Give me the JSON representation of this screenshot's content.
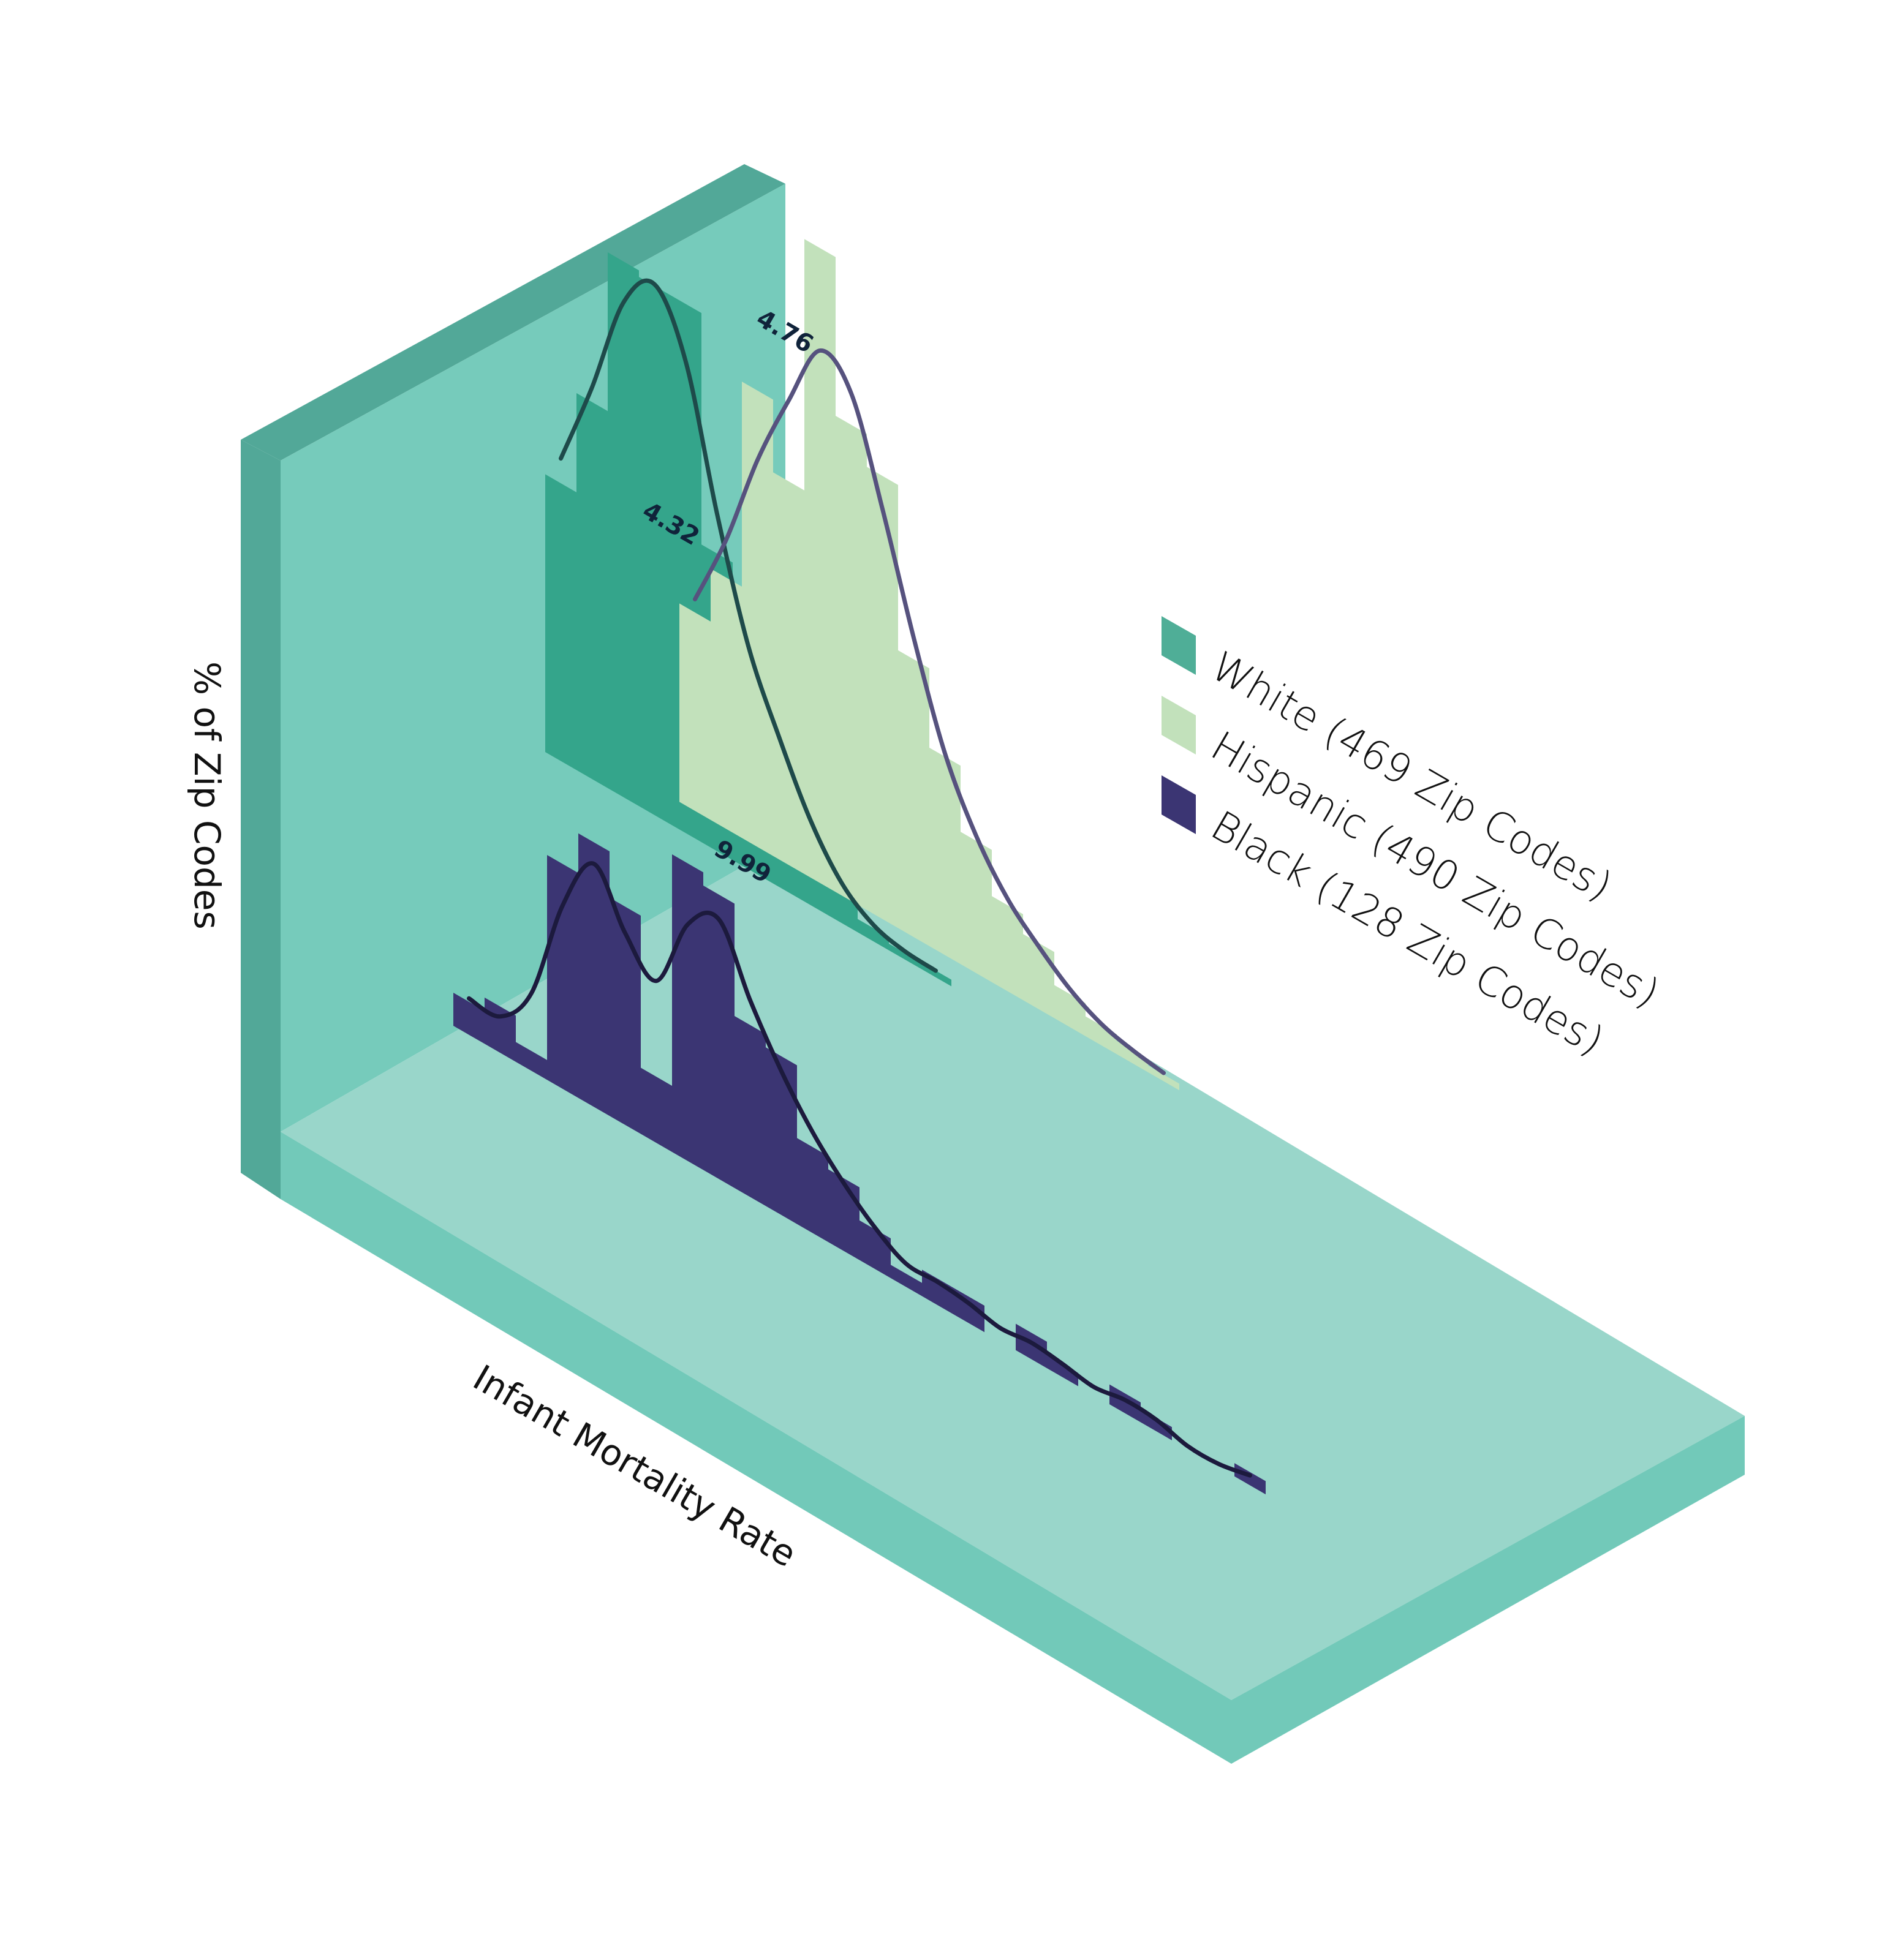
{
  "chart_data": {
    "type": "histogram-3d",
    "title": "",
    "xlabel": "Infant Mortality Rate",
    "ylabel": "% of Zip Codes",
    "grid": false,
    "legend_position": "right",
    "colors": {
      "White": "#34a58b",
      "Hispanic": "#c2e1bb",
      "Black": "#3b3573",
      "wall_face": "#76cbbb",
      "wall_side": "#52a898",
      "floor_top": "#99d6ca",
      "floor_edge": "#72c9b9",
      "curve_white": "#1e4a4a",
      "curve_hispanic": "#56527e",
      "curve_black": "#1c1a3d"
    },
    "series": [
      {
        "name": "White (469 Zip Codes)",
        "key": "White",
        "peak_label": "4.32",
        "bins": [
          {
            "x": 0,
            "y": 0.42
          },
          {
            "x": 1,
            "y": 0.57
          },
          {
            "x": 2,
            "y": 0.81
          },
          {
            "x": 3,
            "y": 0.8
          },
          {
            "x": 4,
            "y": 0.8
          },
          {
            "x": 5,
            "y": 0.45
          },
          {
            "x": 6,
            "y": 0.34
          },
          {
            "x": 7,
            "y": 0.22
          },
          {
            "x": 8,
            "y": 0.12
          },
          {
            "x": 9,
            "y": 0.05
          },
          {
            "x": 10,
            "y": 0.02
          },
          {
            "x": 11,
            "y": 0.01
          },
          {
            "x": 12,
            "y": 0.01
          }
        ]
      },
      {
        "name": "Hispanic (490 Zip Codes)",
        "key": "Hispanic",
        "peak_label": "4.76",
        "bins": [
          {
            "x": 1,
            "y": 0.3
          },
          {
            "x": 2,
            "y": 0.38
          },
          {
            "x": 3,
            "y": 0.69
          },
          {
            "x": 4,
            "y": 0.58
          },
          {
            "x": 5,
            "y": 0.96
          },
          {
            "x": 6,
            "y": 0.72
          },
          {
            "x": 7,
            "y": 0.67
          },
          {
            "x": 8,
            "y": 0.42
          },
          {
            "x": 9,
            "y": 0.3
          },
          {
            "x": 10,
            "y": 0.2
          },
          {
            "x": 11,
            "y": 0.13
          },
          {
            "x": 12,
            "y": 0.1
          },
          {
            "x": 13,
            "y": 0.05
          },
          {
            "x": 14,
            "y": 0.03
          },
          {
            "x": 15,
            "y": 0.02
          },
          {
            "x": 16,
            "y": 0.01
          }
        ]
      },
      {
        "name": "Black (128 Zip Codes)",
        "key": "Black",
        "peak_label": "9.99",
        "bins": [
          {
            "x": 0,
            "y": 0.05
          },
          {
            "x": 1,
            "y": 0.07
          },
          {
            "x": 2,
            "y": 0.03
          },
          {
            "x": 3,
            "y": 0.34
          },
          {
            "x": 4,
            "y": 0.4
          },
          {
            "x": 5,
            "y": 0.33
          },
          {
            "x": 6,
            "y": 0.1
          },
          {
            "x": 7,
            "y": 0.45
          },
          {
            "x": 8,
            "y": 0.43
          },
          {
            "x": 9,
            "y": 0.26
          },
          {
            "x": 10,
            "y": 0.24
          },
          {
            "x": 11,
            "y": 0.13
          },
          {
            "x": 12,
            "y": 0.11
          },
          {
            "x": 13,
            "y": 0.06
          },
          {
            "x": 14,
            "y": 0.02
          },
          {
            "x": 15,
            "y": 0.04
          },
          {
            "x": 16,
            "y": 0.04
          },
          {
            "x": 17,
            "y": 0.0
          },
          {
            "x": 18,
            "y": 0.04
          },
          {
            "x": 19,
            "y": 0.02
          },
          {
            "x": 20,
            "y": 0.0
          },
          {
            "x": 21,
            "y": 0.03
          },
          {
            "x": 22,
            "y": 0.02
          },
          {
            "x": 23,
            "y": 0.0
          },
          {
            "x": 24,
            "y": 0.0
          },
          {
            "x": 25,
            "y": 0.02
          }
        ]
      }
    ]
  }
}
